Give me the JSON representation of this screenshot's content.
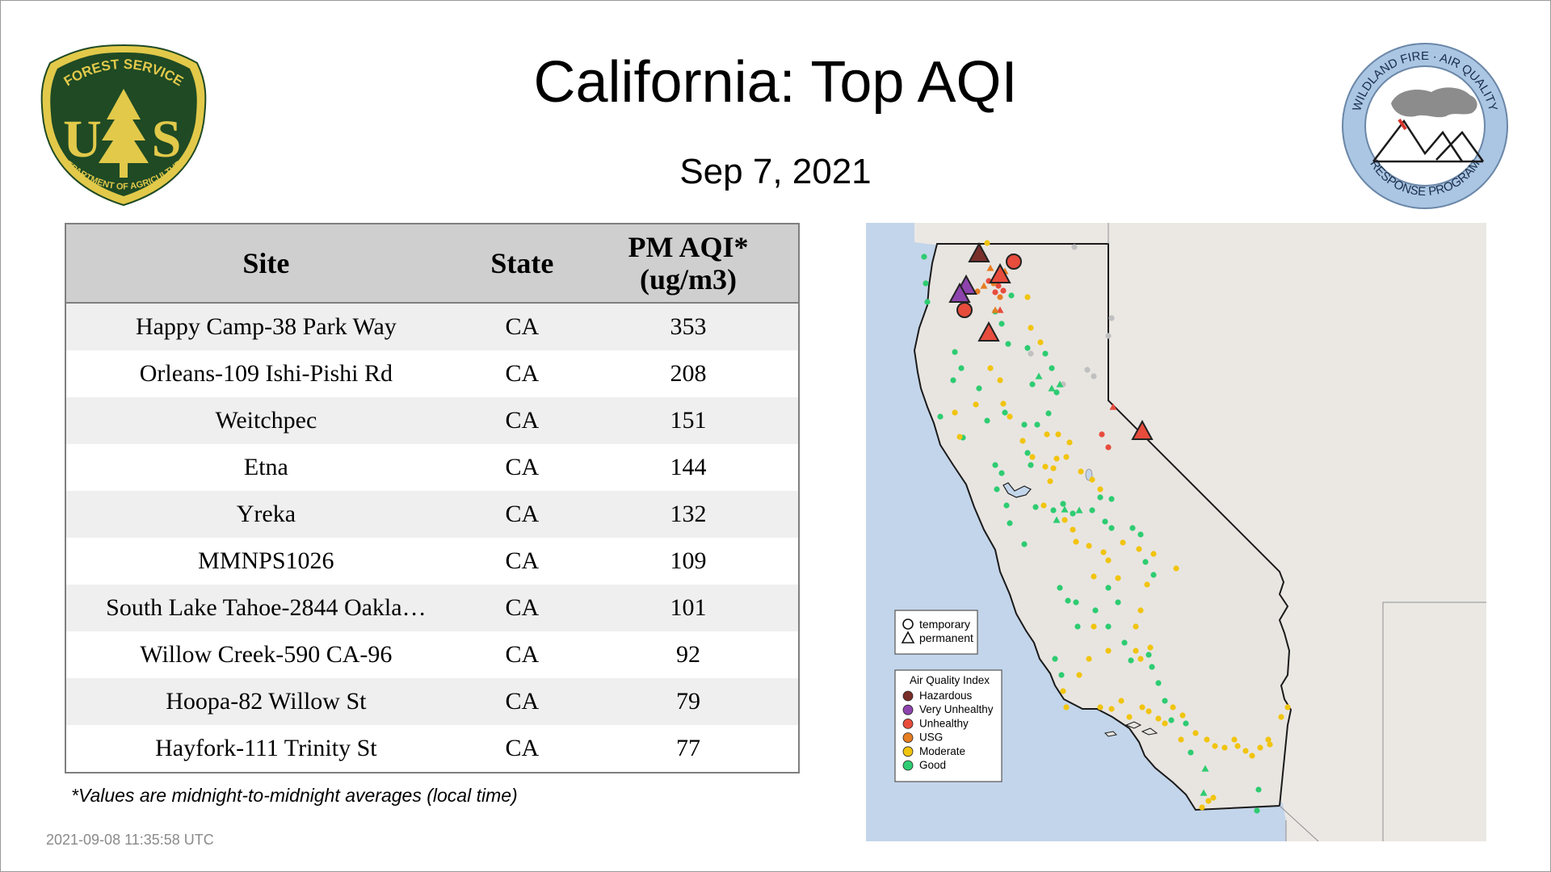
{
  "header": {
    "title": "California: Top AQI",
    "date": "Sep  7, 2021"
  },
  "logos": {
    "left": {
      "name": "Forest Service shield",
      "text_top": "FOREST SERVICE",
      "text_mid_left": "U",
      "text_mid_right": "S",
      "text_bottom": "DEPARTMENT OF AGRICULTURE",
      "colors": {
        "green": "#1f4a24",
        "gold": "#e2c94a"
      }
    },
    "right": {
      "name": "Wildland Fire Air Quality Response Program seal",
      "text_top": "WILDLAND FIRE · AIR QUALITY",
      "text_bottom": "RESPONSE PROGRAM",
      "colors": {
        "ring": "#aac6e3",
        "smoke": "#8c8c8c"
      }
    }
  },
  "table": {
    "headers": {
      "site": "Site",
      "state": "State",
      "aqi_line1": "PM AQI*",
      "aqi_line2": "(ug/m3)"
    },
    "rows": [
      {
        "site": "Happy Camp-38 Park Way",
        "state": "CA",
        "aqi": "353"
      },
      {
        "site": "Orleans-109 Ishi-Pishi Rd",
        "state": "CA",
        "aqi": "208"
      },
      {
        "site": "Weitchpec",
        "state": "CA",
        "aqi": "151"
      },
      {
        "site": "Etna",
        "state": "CA",
        "aqi": "144"
      },
      {
        "site": "Yreka",
        "state": "CA",
        "aqi": "132"
      },
      {
        "site": "MMNPS1026",
        "state": "CA",
        "aqi": "109"
      },
      {
        "site": "South Lake Tahoe-2844 Oakla…",
        "state": "CA",
        "aqi": "101"
      },
      {
        "site": "Willow Creek-590 CA-96",
        "state": "CA",
        "aqi": "92"
      },
      {
        "site": "Hoopa-82 Willow St",
        "state": "CA",
        "aqi": "79"
      },
      {
        "site": "Hayfork-111 Trinity St",
        "state": "CA",
        "aqi": "77"
      }
    ]
  },
  "footnote": "*Values are midnight-to-midnight averages (local time)",
  "timestamp": "2021-09-08 11:35:58 UTC",
  "map": {
    "region": "California",
    "colors": {
      "ocean": "#c3d5ea",
      "land": "#e9e6e2",
      "border": "#1a1a1a"
    },
    "shape_legend": {
      "temporary": "temporary",
      "permanent": "permanent"
    },
    "aqi_legend": {
      "title": "Air Quality Index",
      "items": [
        {
          "label": "Hazardous",
          "color": "#7a2e2a"
        },
        {
          "label": "Very Unhealthy",
          "color": "#8e44ad"
        },
        {
          "label": "Unhealthy",
          "color": "#e74c3c"
        },
        {
          "label": "USG",
          "color": "#e67e22"
        },
        {
          "label": "Moderate",
          "color": "#f1c40f"
        },
        {
          "label": "Good",
          "color": "#2ecc71"
        }
      ]
    }
  }
}
